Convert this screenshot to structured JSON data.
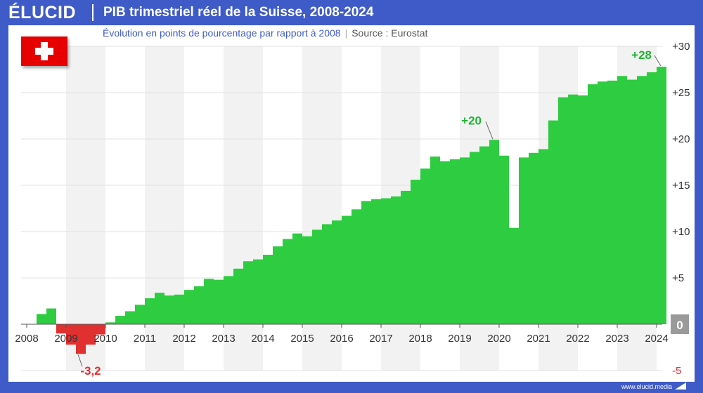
{
  "header": {
    "logo": "ÉLUCID",
    "title": "PIB trimestriel réel de la Suisse, 2008-2024"
  },
  "subtitle": {
    "main": "Évolution en points de pourcentage par rapport à 2008",
    "source": "Source : Eurostat"
  },
  "footer": {
    "url": "www.elucid.media"
  },
  "colors": {
    "positive": "#2ecc40",
    "negative": "#e03030",
    "brand": "#3f5bc8",
    "label_pos": "#21b432",
    "label_neg": "#e03030"
  },
  "chart_data": {
    "type": "bar",
    "title": "PIB trimestriel réel de la Suisse, 2008-2024",
    "subtitle": "Évolution en points de pourcentage par rapport à 2008",
    "xlabel": "",
    "ylabel": "",
    "ylim": [
      -5,
      30
    ],
    "yticks": [
      "-5",
      "0",
      "+5",
      "+10",
      "+15",
      "+20",
      "+25",
      "+30"
    ],
    "ytick_values": [
      -5,
      0,
      5,
      10,
      15,
      20,
      25,
      30
    ],
    "xticks": [
      "2008",
      "2009",
      "2010",
      "2011",
      "2012",
      "2013",
      "2014",
      "2015",
      "2016",
      "2017",
      "2018",
      "2019",
      "2020",
      "2021",
      "2022",
      "2023",
      "2024"
    ],
    "grid": true,
    "legend": "none",
    "categories": [
      "2008-Q1",
      "2008-Q2",
      "2008-Q3",
      "2008-Q4",
      "2009-Q1",
      "2009-Q2",
      "2009-Q3",
      "2009-Q4",
      "2010-Q1",
      "2010-Q2",
      "2010-Q3",
      "2010-Q4",
      "2011-Q1",
      "2011-Q2",
      "2011-Q3",
      "2011-Q4",
      "2012-Q1",
      "2012-Q2",
      "2012-Q3",
      "2012-Q4",
      "2013-Q1",
      "2013-Q2",
      "2013-Q3",
      "2013-Q4",
      "2014-Q1",
      "2014-Q2",
      "2014-Q3",
      "2014-Q4",
      "2015-Q1",
      "2015-Q2",
      "2015-Q3",
      "2015-Q4",
      "2016-Q1",
      "2016-Q2",
      "2016-Q3",
      "2016-Q4",
      "2017-Q1",
      "2017-Q2",
      "2017-Q3",
      "2017-Q4",
      "2018-Q1",
      "2018-Q2",
      "2018-Q3",
      "2018-Q4",
      "2019-Q1",
      "2019-Q2",
      "2019-Q3",
      "2019-Q4",
      "2020-Q1",
      "2020-Q2",
      "2020-Q3",
      "2020-Q4",
      "2021-Q1",
      "2021-Q2",
      "2021-Q3",
      "2021-Q4",
      "2022-Q1",
      "2022-Q2",
      "2022-Q3",
      "2022-Q4",
      "2023-Q1",
      "2023-Q2",
      "2023-Q3",
      "2023-Q4",
      "2024-Q1"
    ],
    "values": [
      0,
      1.1,
      1.7,
      -1.0,
      -2.2,
      -3.2,
      -2.2,
      -1.1,
      0.2,
      0.9,
      1.4,
      2.1,
      2.8,
      3.4,
      3.1,
      3.2,
      3.7,
      4.1,
      4.9,
      4.8,
      5.2,
      6.0,
      6.8,
      7.0,
      7.5,
      8.4,
      9.2,
      9.8,
      9.5,
      10.2,
      10.8,
      11.2,
      11.7,
      12.4,
      13.3,
      13.5,
      13.6,
      13.8,
      14.4,
      15.6,
      16.8,
      18.1,
      17.6,
      17.8,
      18.0,
      18.6,
      19.2,
      19.9,
      18.2,
      10.4,
      18.0,
      18.5,
      18.9,
      22.0,
      24.5,
      24.8,
      24.7,
      25.9,
      26.2,
      26.3,
      26.8,
      26.4,
      26.8,
      27.2,
      27.8
    ],
    "annotations": [
      {
        "text": "+28",
        "index": 64,
        "value": 27.8
      },
      {
        "text": "+20",
        "index": 47,
        "value": 19.9
      },
      {
        "text": "-3,2",
        "index": 5,
        "value": -3.2
      }
    ]
  }
}
